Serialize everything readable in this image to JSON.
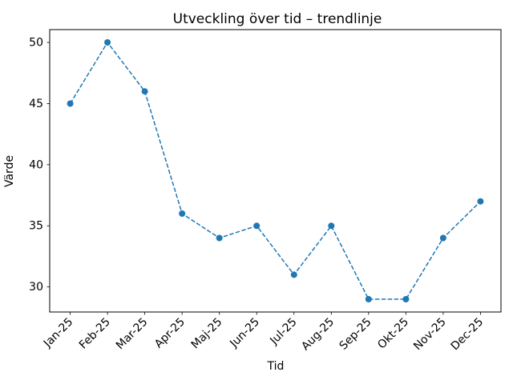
{
  "chart_data": {
    "type": "line",
    "title": "Utveckling över tid – trendlinje",
    "xlabel": "Tid",
    "ylabel": "Värde",
    "categories": [
      "Jan-25",
      "Feb-25",
      "Mar-25",
      "Apr-25",
      "Maj-25",
      "Jun-25",
      "Jul-25",
      "Aug-25",
      "Sep-25",
      "Okt-25",
      "Nov-25",
      "Dec-25"
    ],
    "values": [
      45,
      50,
      46,
      36,
      34,
      35,
      31,
      35,
      29,
      29,
      34,
      37
    ],
    "yticks": [
      30,
      35,
      40,
      45,
      50
    ],
    "ylim": [
      27.95,
      51.05
    ],
    "xlim": [
      -0.55,
      11.55
    ],
    "xtick_rotation_deg": 45,
    "grid": false,
    "legend_position": "none",
    "line_style": "dashed",
    "marker": "circle",
    "line_color": "#1f77b4",
    "axes_color": "#000000",
    "background_color": "#ffffff"
  }
}
